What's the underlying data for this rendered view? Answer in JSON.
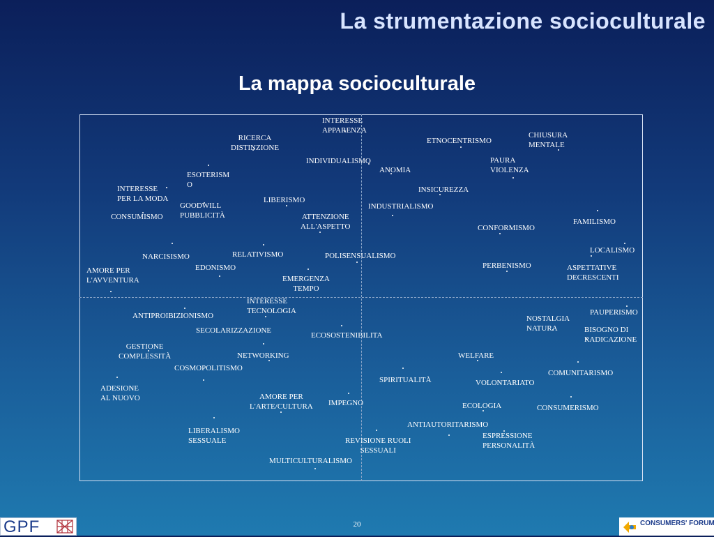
{
  "header": {
    "title": "La strumentazione socioculturale"
  },
  "map": {
    "title": "La mappa socioculturale",
    "terms": [
      {
        "label": "INTERESSE\nAPPARENZA"
      },
      {
        "label": "RICERCA\nDISTINZIONE"
      },
      {
        "label": "ETNOCENTRISMO"
      },
      {
        "label": "CHIUSURA\nMENTALE"
      },
      {
        "label": "INDIVIDUALISMO"
      },
      {
        "label": "ANOMIA"
      },
      {
        "label": "PAURA\nVIOLENZA"
      },
      {
        "label": "ESOTERISM\nO"
      },
      {
        "label": "INTERESSE\nPER LA MODA"
      },
      {
        "label": "INSICUREZZA"
      },
      {
        "label": "LIBERISMO"
      },
      {
        "label": "GOODWILL\nPUBBLICITÀ"
      },
      {
        "label": "INDUSTRIALISMO"
      },
      {
        "label": "CONSUMISMO"
      },
      {
        "label": "ATTENZIONE\nALL'ASPETTO"
      },
      {
        "label": "FAMILISMO"
      },
      {
        "label": "CONFORMISMO"
      },
      {
        "label": "LOCALISMO"
      },
      {
        "label": "NARCISISMO"
      },
      {
        "label": "RELATIVISMO"
      },
      {
        "label": "POLISENSUALISMO"
      },
      {
        "label": "PERBENISMO"
      },
      {
        "label": "EDONISMO"
      },
      {
        "label": "ASPETTATIVE\nDECRESCENTI"
      },
      {
        "label": "AMORE PER\nL'AVVENTURA"
      },
      {
        "label": "EMERGENZA\nTEMPO"
      },
      {
        "label": "INTERESSE\nTECNOLOGIA"
      },
      {
        "label": "PAUPERISMO"
      },
      {
        "label": "ANTIPROIBIZIONISMO"
      },
      {
        "label": "NOSTALGIA\nNATURA"
      },
      {
        "label": "SECOLARIZZAZIONE"
      },
      {
        "label": "BISOGNO DI\nRADICAZIONE"
      },
      {
        "label": "ECOSOSTENIBILITA"
      },
      {
        "label": "GESTIONE\nCOMPLESSITÀ"
      },
      {
        "label": "NETWORKING"
      },
      {
        "label": "WELFARE"
      },
      {
        "label": "COSMOPOLITISMO"
      },
      {
        "label": "COMUNITARISMO"
      },
      {
        "label": "SPIRITUALITÀ"
      },
      {
        "label": "VOLONTARIATO"
      },
      {
        "label": "ADESIONE\nAL NUOVO"
      },
      {
        "label": "AMORE PER\nL'ARTE/CULTURA"
      },
      {
        "label": "IMPEGNO"
      },
      {
        "label": "ECOLOGIA"
      },
      {
        "label": "CONSUMERISMO"
      },
      {
        "label": "ANTIAUTORITARISMO"
      },
      {
        "label": "LIBERALISMO\nSESSUALE"
      },
      {
        "label": "ESPRESSIONE\nPERSONALITÀ"
      },
      {
        "label": "REVISIONE RUOLI\nSESSUALI"
      },
      {
        "label": "MULTICULTURALISMO"
      }
    ]
  },
  "footer": {
    "page_number": "20",
    "left_logo": "GPF",
    "right_logo": "CONSUMERS' FORUM"
  }
}
